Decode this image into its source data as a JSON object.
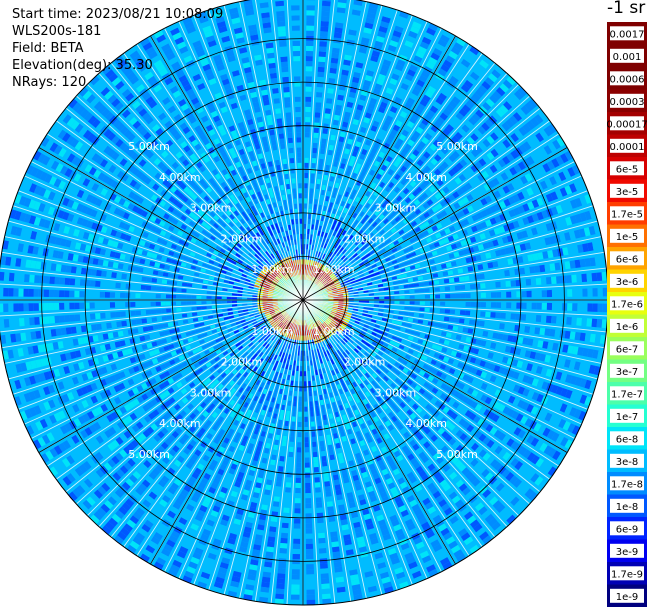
{
  "header": {
    "start_time": "Start time: 2023/08/21 10:08:09",
    "device": "WLS200s-181",
    "field": "Field: BETA",
    "elevation": "Elevation(deg): 35.30",
    "nrays": "NRays: 120"
  },
  "chart_data": {
    "type": "heatmap",
    "subtype": "polar-ppi",
    "title": "",
    "rays": 120,
    "range_rings_km": [
      1,
      2,
      3,
      4,
      5,
      6
    ],
    "range_labels": [
      "1.00km",
      "2.00km",
      "3.00km",
      "4.00km",
      "5.00km"
    ],
    "max_range_km": 7.0,
    "grid": true,
    "colorbar": {
      "unit": "-1 sr",
      "position": "right",
      "levels": [
        "1e-9",
        "1.7e-9",
        "3e-9",
        "6e-9",
        "1e-8",
        "1.7e-8",
        "3e-8",
        "6e-8",
        "1e-7",
        "1.7e-7",
        "3e-7",
        "6e-7",
        "1e-6",
        "1.7e-6",
        "3e-6",
        "6e-6",
        "1e-5",
        "1.7e-5",
        "3e-5",
        "6e-5",
        "0.0001",
        "0.00017",
        "0.0003",
        "0.0006",
        "0.001",
        "0.0017"
      ],
      "colors": [
        "#00007f",
        "#0000b4",
        "#0000f0",
        "#0024ff",
        "#0058ff",
        "#008cff",
        "#00bcff",
        "#00e4f8",
        "#25ffd2",
        "#4cffaa",
        "#73ff83",
        "#9aff5c",
        "#c1ff36",
        "#e8ff0f",
        "#ffd400",
        "#ffa300",
        "#ff7000",
        "#ff3d00",
        "#f00a00",
        "#d70000",
        "#bd0000",
        "#a40000",
        "#8b0000",
        "#7f0000",
        "#7f0000",
        "#7f0000"
      ]
    },
    "pattern_description": "Background returns near 1e-8 to 3e-8 across the scan; a bright ring of 1e-5 to 6e-5 at about 0.8 km range."
  }
}
